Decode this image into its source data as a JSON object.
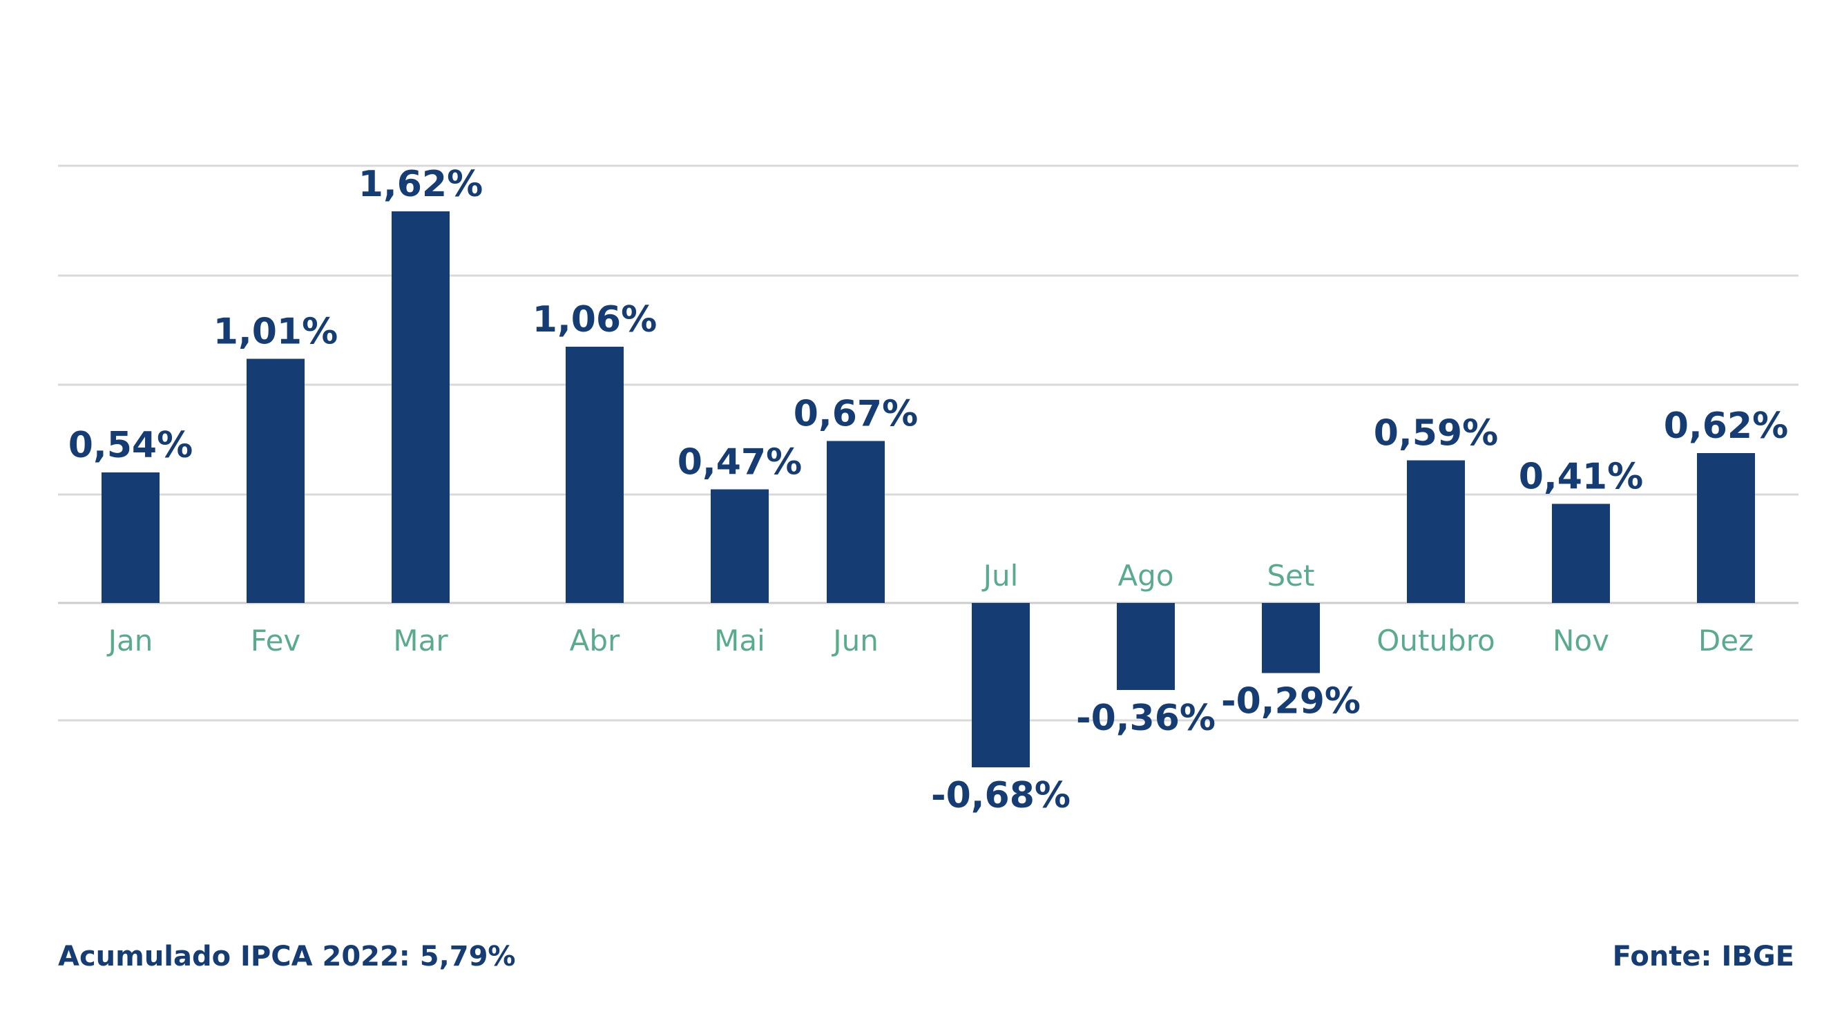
{
  "colors": {
    "bar": "#153d73",
    "value_label": "#153d73",
    "category_label": "#5aab8d",
    "grid": "#d9d9d9",
    "baseline": "#cccccc"
  },
  "chart_data": {
    "type": "bar",
    "title": "",
    "xlabel": "",
    "ylabel": "",
    "categories": [
      "Jan",
      "Fev",
      "Mar",
      "Abr",
      "Mai",
      "Jun",
      "Jul",
      "Ago",
      "Set",
      "Outubro",
      "Nov",
      "Dez"
    ],
    "values": [
      0.54,
      1.01,
      1.62,
      1.06,
      0.47,
      0.67,
      -0.68,
      -0.36,
      -0.29,
      0.59,
      0.41,
      0.62
    ],
    "value_labels": [
      "0,54%",
      "1,01%",
      "1,62%",
      "1,06%",
      "0,47%",
      "0,67%",
      "-0,68%",
      "-0,36%",
      "-0,29%",
      "0,59%",
      "0,41%",
      "0,62%"
    ],
    "ylim": [
      -0.68,
      1.62
    ],
    "grid": true,
    "legend": "none"
  },
  "notes": {
    "cumulative": "Acumulado IPCA 2022: 5,79%",
    "source": "Fonte: IBGE"
  }
}
